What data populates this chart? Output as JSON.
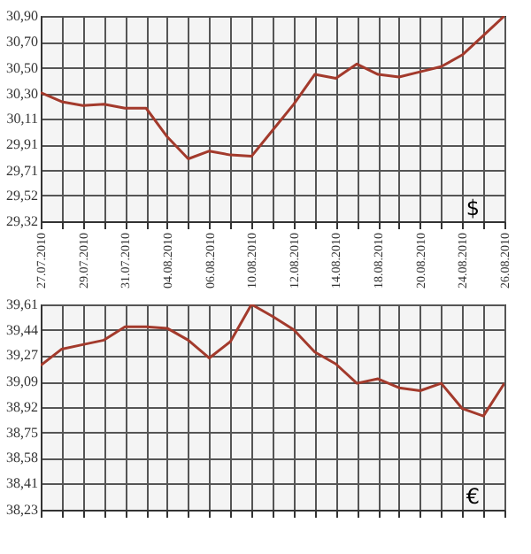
{
  "chart_data": [
    {
      "type": "line",
      "categories": [
        "27.07.2010",
        null,
        "29.07.2010",
        null,
        "31.07.2010",
        null,
        "04.08.2010",
        null,
        "06.08.2010",
        null,
        "10.08.2010",
        null,
        "12.08.2010",
        null,
        "14.08.2010",
        null,
        "18.08.2010",
        null,
        "20.08.2010",
        null,
        "24.08.2010",
        null,
        "26.08.2010"
      ],
      "series": [
        {
          "color": "#a33a2c",
          "values": [
            30.31,
            30.24,
            30.21,
            30.22,
            30.19,
            30.19,
            29.97,
            29.8,
            29.86,
            29.83,
            29.82,
            30.02,
            30.22,
            30.45,
            30.42,
            30.53,
            30.45,
            30.43,
            30.47,
            30.51,
            30.6,
            30.75,
            30.9
          ]
        }
      ],
      "ylim": [
        29.32,
        30.9
      ],
      "yticks": [
        {
          "value": 29.32,
          "label": "29,32"
        },
        {
          "value": 29.52,
          "label": "29,52"
        },
        {
          "value": 29.71,
          "label": "29,71"
        },
        {
          "value": 29.91,
          "label": "29,91"
        },
        {
          "value": 30.11,
          "label": "30,11"
        },
        {
          "value": 30.3,
          "label": "30,30"
        },
        {
          "value": 30.5,
          "label": "30,50"
        },
        {
          "value": 30.7,
          "label": "30,70"
        },
        {
          "value": 30.9,
          "label": "30,90"
        }
      ],
      "grid": true,
      "annotations": [
        "$"
      ]
    },
    {
      "type": "line",
      "categories": [
        "27.07.2010",
        null,
        "29.07.2010",
        null,
        "31.07.2010",
        null,
        "04.08.2010",
        null,
        "06.08.2010",
        null,
        "10.08.2010",
        null,
        "12.08.2010",
        null,
        "14.08.2010",
        null,
        "18.08.2010",
        null,
        "20.08.2010",
        null,
        "24.08.2010",
        null,
        "26.08.2010"
      ],
      "series": [
        {
          "color": "#a33a2c",
          "values": [
            39.2,
            39.31,
            39.34,
            39.37,
            39.46,
            39.46,
            39.45,
            39.37,
            39.25,
            39.36,
            39.61,
            39.53,
            39.44,
            39.29,
            39.21,
            39.08,
            39.11,
            39.05,
            39.03,
            39.08,
            38.91,
            38.86,
            39.08
          ]
        }
      ],
      "ylim": [
        38.23,
        39.61
      ],
      "yticks": [
        {
          "value": 38.23,
          "label": "38,23"
        },
        {
          "value": 38.41,
          "label": "38,41"
        },
        {
          "value": 38.58,
          "label": "38,58"
        },
        {
          "value": 38.75,
          "label": "38,75"
        },
        {
          "value": 38.92,
          "label": "38,92"
        },
        {
          "value": 39.09,
          "label": "39,09"
        },
        {
          "value": 39.27,
          "label": "39,27"
        },
        {
          "value": 39.44,
          "label": "39,44"
        },
        {
          "value": 39.61,
          "label": "39,61"
        }
      ],
      "grid": true,
      "tick_labels": "y",
      "annotations": [
        "€"
      ]
    }
  ]
}
